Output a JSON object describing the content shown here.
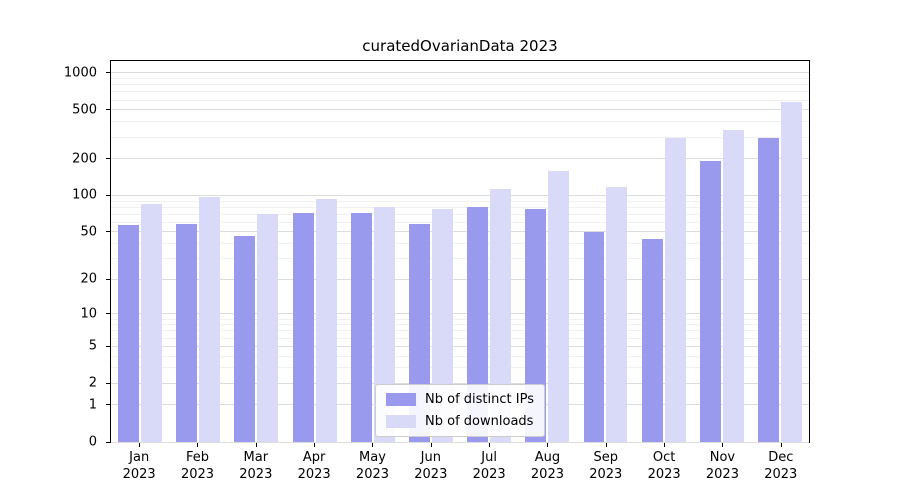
{
  "chart_data": {
    "type": "bar",
    "title": "curatedOvarianData 2023",
    "categories": [
      "Jan",
      "Feb",
      "Mar",
      "Apr",
      "May",
      "Jun",
      "Jul",
      "Aug",
      "Sep",
      "Oct",
      "Nov",
      "Dec"
    ],
    "x_tick_second_line": "2023",
    "series": [
      {
        "name": "Nb of distinct IPs",
        "color": "#9999ee",
        "values": [
          57,
          58,
          46,
          72,
          72,
          58,
          80,
          78,
          50,
          44,
          190,
          295
        ]
      },
      {
        "name": "Nb of downloads",
        "color": "#d9d9f8",
        "values": [
          85,
          97,
          70,
          93,
          80,
          78,
          112,
          158,
          117,
          295,
          340,
          580
        ]
      }
    ],
    "y_axis": {
      "scale": "symlog",
      "major_ticks": [
        0,
        1,
        2,
        5,
        10,
        20,
        50,
        100,
        200,
        500,
        1000
      ],
      "minor_ticks": [
        3,
        4,
        6,
        7,
        8,
        9,
        30,
        40,
        60,
        70,
        80,
        90,
        300,
        400,
        600,
        700,
        800,
        900
      ],
      "axis_max": 1250
    },
    "legend": {
      "position": "bottom-center",
      "entries": [
        "Nb of distinct IPs",
        "Nb of downloads"
      ]
    },
    "grid": "on"
  }
}
